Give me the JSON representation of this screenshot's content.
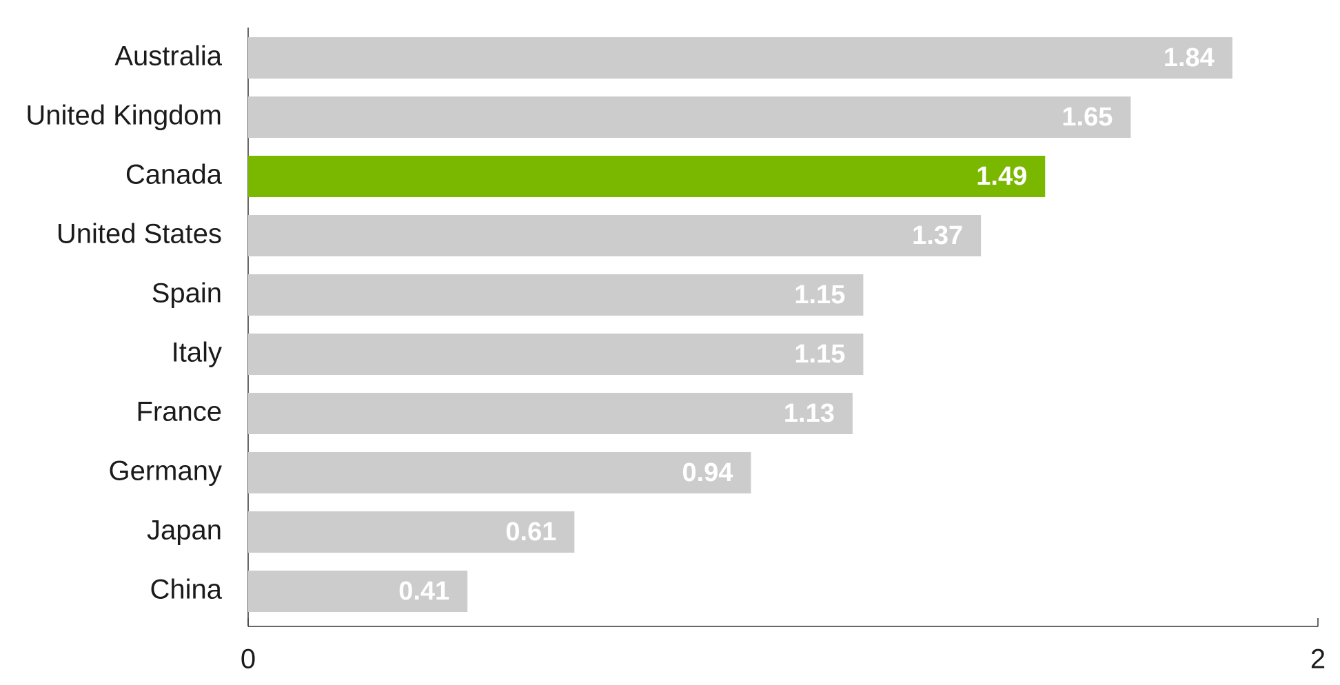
{
  "chart_data": {
    "type": "hbar",
    "categories": [
      "Australia",
      "United Kingdom",
      "Canada",
      "United States",
      "Spain",
      "Italy",
      "France",
      "Germany",
      "Japan",
      "China"
    ],
    "values": [
      1.84,
      1.65,
      1.49,
      1.37,
      1.15,
      1.15,
      1.13,
      0.94,
      0.61,
      0.41
    ],
    "colors": [
      "#cccccc",
      "#cccccc",
      "#7ab800",
      "#cccccc",
      "#cccccc",
      "#cccccc",
      "#cccccc",
      "#cccccc",
      "#cccccc",
      "#cccccc"
    ],
    "xlim": [
      0,
      2
    ],
    "xticks": [
      0,
      2
    ],
    "grid": false
  }
}
